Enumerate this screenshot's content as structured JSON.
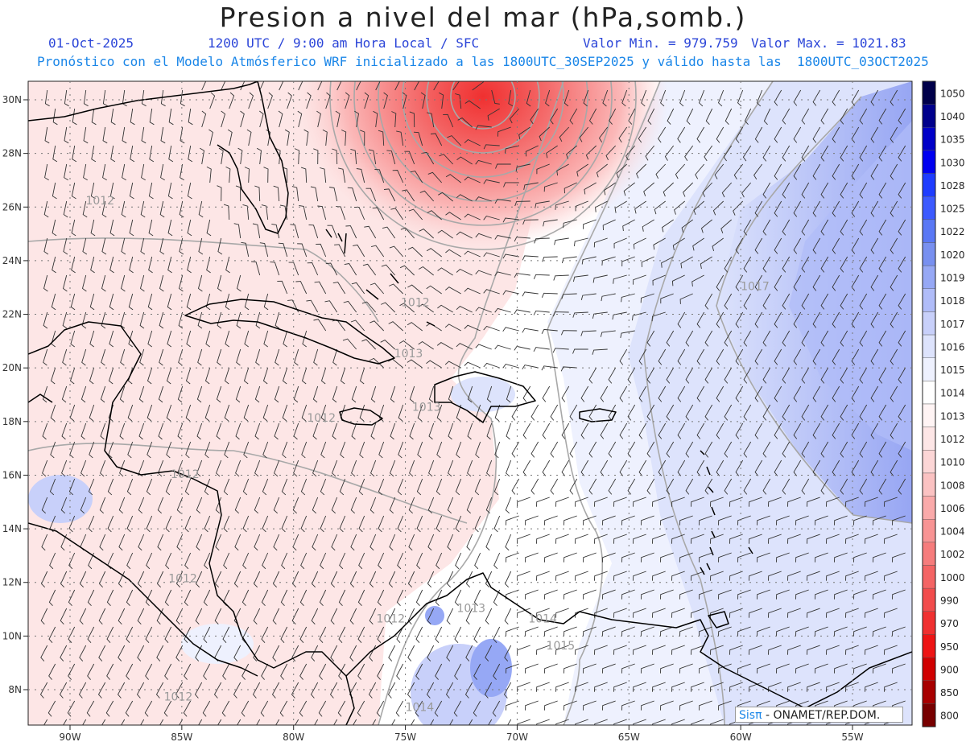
{
  "title": "Presion a nivel del mar (hPa,somb.)",
  "header": {
    "date": "01-Oct-2025",
    "time": "1200 UTC / 9:00 am Hora Local / SFC",
    "min_label": "Valor Min. = 979.759",
    "max_label": "Valor Max. = 1021.83",
    "forecast": "Pronóstico con el Modelo Atmósferico WRF inicializado a las 1800UTC_30SEP2025 y válido hasta las  1800UTC_03OCT2025"
  },
  "credit": {
    "brand": "Sisπ",
    "text": " - ONAMET/REP.DOM."
  },
  "axes": {
    "lon_ticks": [
      "90W",
      "85W",
      "80W",
      "75W",
      "70W",
      "65W",
      "60W",
      "55W"
    ],
    "lat_ticks": [
      "8N",
      "10N",
      "12N",
      "14N",
      "16N",
      "18N",
      "20N",
      "22N",
      "24N",
      "26N",
      "28N",
      "30N"
    ]
  },
  "colorbar": {
    "levels": [
      {
        "label": "1050",
        "color": "#00004a"
      },
      {
        "label": "1040",
        "color": "#00008c"
      },
      {
        "label": "1035",
        "color": "#0000c8"
      },
      {
        "label": "1030",
        "color": "#0000f0"
      },
      {
        "label": "1028",
        "color": "#1e3cff"
      },
      {
        "label": "1025",
        "color": "#3c5aff"
      },
      {
        "label": "1022",
        "color": "#5a78f5"
      },
      {
        "label": "1020",
        "color": "#7890f0"
      },
      {
        "label": "1019",
        "color": "#96a8f5"
      },
      {
        "label": "1018",
        "color": "#b0bcf8"
      },
      {
        "label": "1017",
        "color": "#c8d0fa"
      },
      {
        "label": "1016",
        "color": "#dde3fc"
      },
      {
        "label": "1015",
        "color": "#eef1fe"
      },
      {
        "label": "1014",
        "color": "#ffffff"
      },
      {
        "label": "1013",
        "color": "#fff4f4"
      },
      {
        "label": "1012",
        "color": "#fde6e6"
      },
      {
        "label": "1010",
        "color": "#fcd6d6"
      },
      {
        "label": "1008",
        "color": "#fbc2c2"
      },
      {
        "label": "1006",
        "color": "#faaaaa"
      },
      {
        "label": "1004",
        "color": "#f89494"
      },
      {
        "label": "1002",
        "color": "#f67c7c"
      },
      {
        "label": "1000",
        "color": "#f46464"
      },
      {
        "label": "990",
        "color": "#f24c4c"
      },
      {
        "label": "970",
        "color": "#f03030"
      },
      {
        "label": "950",
        "color": "#ee1414"
      },
      {
        "label": "900",
        "color": "#d00000"
      },
      {
        "label": "850",
        "color": "#a80000"
      },
      {
        "label": "800",
        "color": "#780000"
      }
    ]
  },
  "isobar_labels": [
    {
      "text": "1012",
      "lon": -89.3,
      "lat": 26.1
    },
    {
      "text": "1012",
      "lon": -79.4,
      "lat": 18.0
    },
    {
      "text": "1012",
      "lon": -85.5,
      "lat": 15.9
    },
    {
      "text": "1012",
      "lon": -85.6,
      "lat": 12.0
    },
    {
      "text": "1012",
      "lon": -76.3,
      "lat": 10.5
    },
    {
      "text": "1012",
      "lon": -85.8,
      "lat": 7.6
    },
    {
      "text": "1012",
      "lon": -75.2,
      "lat": 22.3
    },
    {
      "text": "1013",
      "lon": -75.5,
      "lat": 20.4
    },
    {
      "text": "1013",
      "lon": -74.7,
      "lat": 18.4
    },
    {
      "text": "1013",
      "lon": -72.7,
      "lat": 10.9
    },
    {
      "text": "1014",
      "lon": -69.5,
      "lat": 10.5
    },
    {
      "text": "1014",
      "lon": -75.0,
      "lat": 7.2
    },
    {
      "text": "1015",
      "lon": -68.7,
      "lat": 9.5
    },
    {
      "text": "1017",
      "lon": -60.0,
      "lat": 22.9
    }
  ],
  "colors": {
    "land": "#000000",
    "grid": "#777777",
    "isobar": "#a8a8a8",
    "barb": "#333333"
  }
}
